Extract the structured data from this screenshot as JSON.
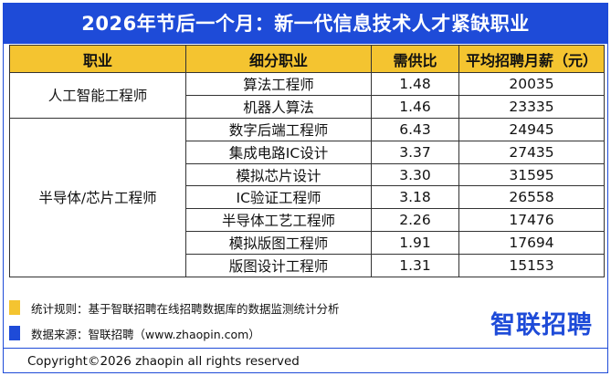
{
  "title": "2026年节后一个月：新一代信息技术人才紧缺职业",
  "columns": [
    "职业",
    "细分职业",
    "需供比",
    "平均招聘月薪（元）"
  ],
  "groups": [
    {
      "name": "人工智能工程师",
      "rows": [
        {
          "sub": "算法工程师",
          "ratio": "1.48",
          "salary": "20035"
        },
        {
          "sub": "机器人算法",
          "ratio": "1.46",
          "salary": "23335"
        }
      ]
    },
    {
      "name": "半导体/芯片工程师",
      "rows": [
        {
          "sub": "数字后端工程师",
          "ratio": "6.43",
          "salary": "24945"
        },
        {
          "sub": "集成电路IC设计",
          "ratio": "3.37",
          "salary": "27435"
        },
        {
          "sub": "模拟芯片设计",
          "ratio": "3.30",
          "salary": "31595"
        },
        {
          "sub": "IC验证工程师",
          "ratio": "3.18",
          "salary": "26558"
        },
        {
          "sub": "半导体工艺工程师",
          "ratio": "2.26",
          "salary": "17476"
        },
        {
          "sub": "模拟版图工程师",
          "ratio": "1.91",
          "salary": "17694"
        },
        {
          "sub": "版图设计工程师",
          "ratio": "1.31",
          "salary": "15153"
        }
      ]
    }
  ],
  "notes": {
    "method": "统计规则：基于智联招聘在线招聘数据库的数据监测统计分析",
    "source": "数据来源：智联招聘（www.zhaopin.com）"
  },
  "logo": "智联招聘",
  "copyright": "Copyright©2026 zhaopin all rights reserved",
  "colors": {
    "brand_blue": "#1e4bd8",
    "header_yellow": "#f4c430"
  }
}
